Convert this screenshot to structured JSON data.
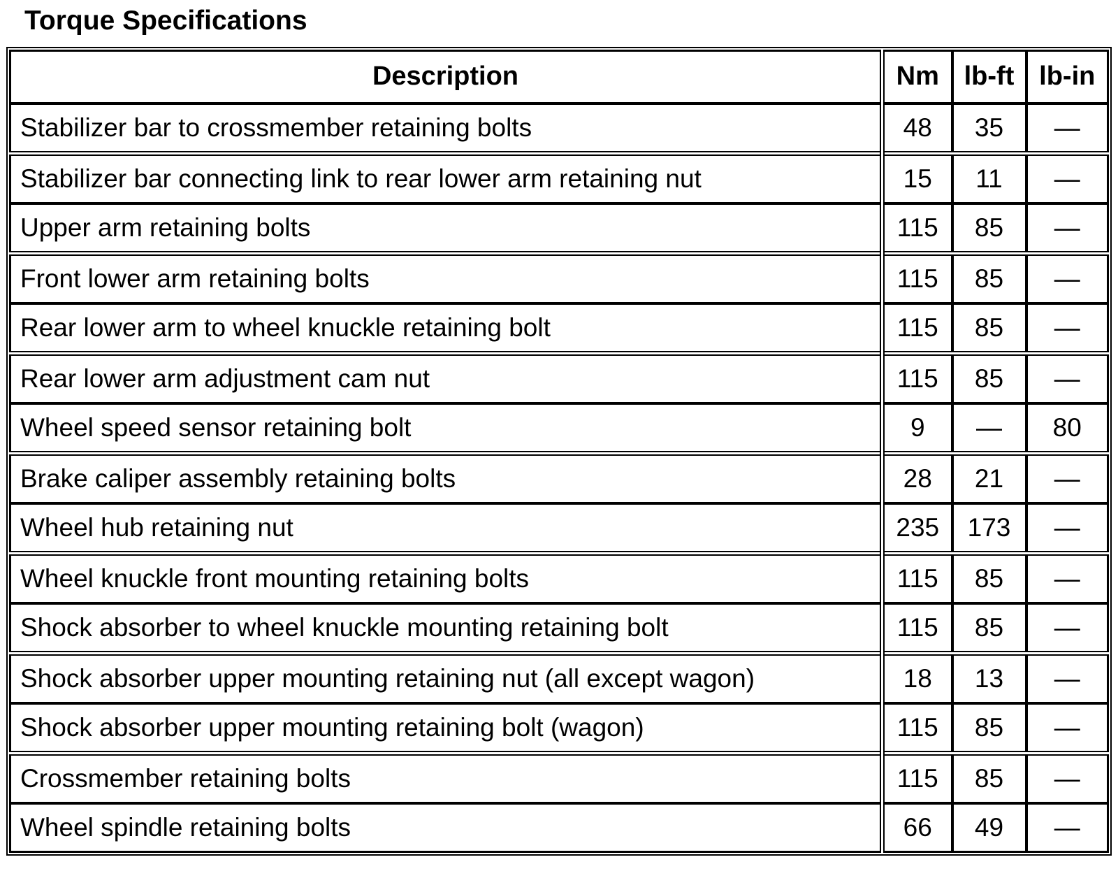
{
  "page": {
    "title": "Torque Specifications"
  },
  "table": {
    "headers": {
      "description": "Description",
      "nm": "Nm",
      "lbft": "lb-ft",
      "lbin": "lb-in"
    },
    "rows": [
      {
        "description": "Stabilizer bar to crossmember retaining bolts",
        "nm": "48",
        "lbft": "35",
        "lbin": "—"
      },
      {
        "description": "Stabilizer bar connecting link to rear lower arm retaining nut",
        "nm": "15",
        "lbft": "11",
        "lbin": "—"
      },
      {
        "description": "Upper arm retaining bolts",
        "nm": "115",
        "lbft": "85",
        "lbin": "—"
      },
      {
        "description": "Front lower arm retaining bolts",
        "nm": "115",
        "lbft": "85",
        "lbin": "—"
      },
      {
        "description": "Rear lower arm to wheel knuckle retaining bolt",
        "nm": "115",
        "lbft": "85",
        "lbin": "—"
      },
      {
        "description": "Rear lower arm adjustment cam nut",
        "nm": "115",
        "lbft": "85",
        "lbin": "—"
      },
      {
        "description": "Wheel speed sensor retaining bolt",
        "nm": "9",
        "lbft": "—",
        "lbin": "80"
      },
      {
        "description": "Brake caliper assembly retaining bolts",
        "nm": "28",
        "lbft": "21",
        "lbin": "—"
      },
      {
        "description": "Wheel hub retaining nut",
        "nm": "235",
        "lbft": "173",
        "lbin": "—"
      },
      {
        "description": "Wheel knuckle front mounting retaining bolts",
        "nm": "115",
        "lbft": "85",
        "lbin": "—"
      },
      {
        "description": "Shock absorber to wheel knuckle mounting retaining bolt",
        "nm": "115",
        "lbft": "85",
        "lbin": "—"
      },
      {
        "description": "Shock absorber upper mounting retaining nut (all except wagon)",
        "nm": "18",
        "lbft": "13",
        "lbin": "—"
      },
      {
        "description": "Shock absorber upper mounting retaining bolt (wagon)",
        "nm": "115",
        "lbft": "85",
        "lbin": "—"
      },
      {
        "description": "Crossmember retaining bolts",
        "nm": "115",
        "lbft": "85",
        "lbin": "—"
      },
      {
        "description": "Wheel spindle retaining bolts",
        "nm": "66",
        "lbft": "49",
        "lbin": "—"
      }
    ]
  }
}
